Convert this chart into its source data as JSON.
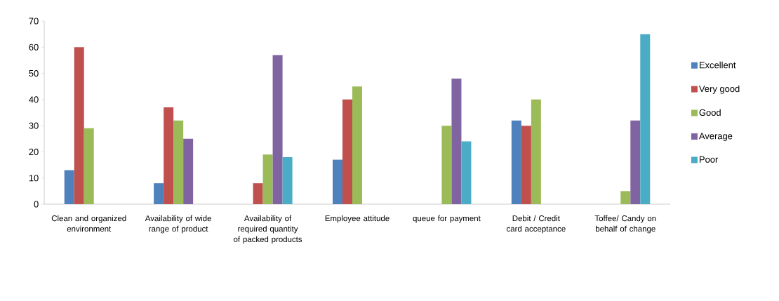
{
  "chart_data": {
    "type": "bar",
    "categories": [
      "Clean and organized environment",
      "Availability of wide range of product",
      "Availability of required quantity of packed products",
      "Employee attitude",
      "queue for payment",
      "Debit / Credit card acceptance",
      "Toffee/ Candy on behalf of change"
    ],
    "series": [
      {
        "name": "Excellent",
        "color": "#4f81bd",
        "values": [
          13,
          8,
          0,
          17,
          0,
          32,
          0
        ]
      },
      {
        "name": "Very good",
        "color": "#c0504d",
        "values": [
          60,
          37,
          8,
          40,
          0,
          30,
          0
        ]
      },
      {
        "name": "Good",
        "color": "#9bbb59",
        "values": [
          29,
          32,
          19,
          45,
          30,
          40,
          5
        ]
      },
      {
        "name": "Average",
        "color": "#8064a2",
        "values": [
          0,
          25,
          57,
          0,
          48,
          0,
          32
        ]
      },
      {
        "name": "Poor",
        "color": "#4bacc6",
        "values": [
          0,
          0,
          18,
          0,
          24,
          0,
          65
        ]
      }
    ],
    "ylim": [
      0,
      70
    ],
    "yticks": [
      0,
      10,
      20,
      30,
      40,
      50,
      60,
      70
    ],
    "grid": false,
    "legend": "right"
  }
}
